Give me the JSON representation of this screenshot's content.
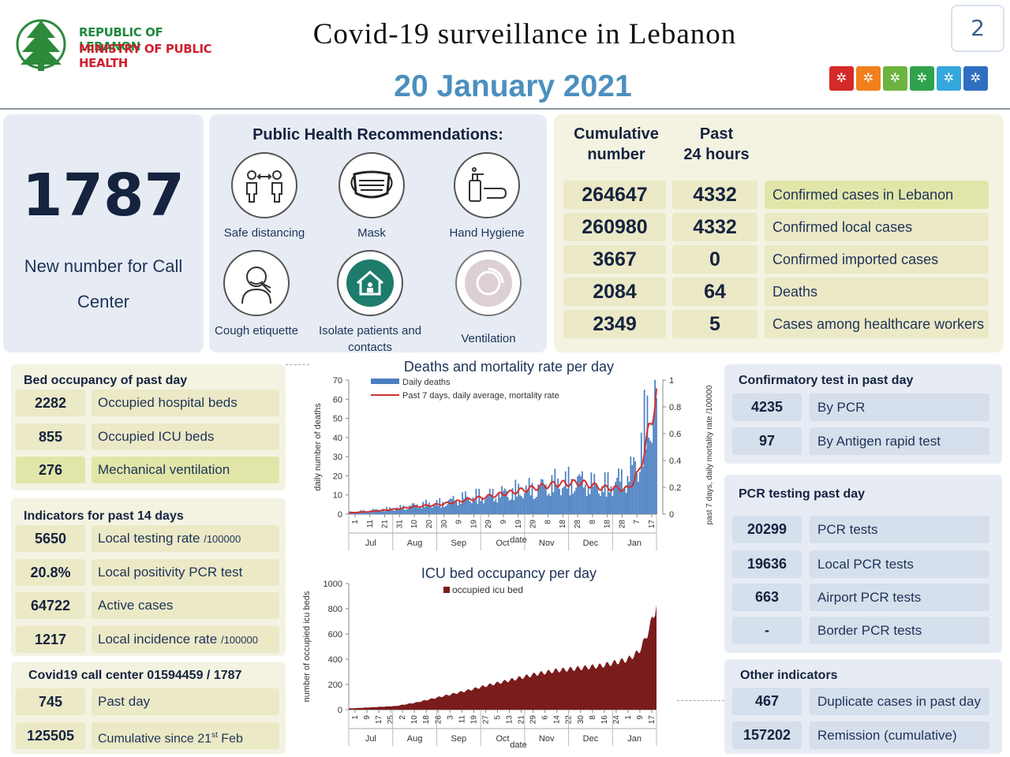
{
  "header": {
    "logo_line1": "REPUBLIC OF LEBANON",
    "logo_line2": "MINISTRY OF PUBLIC HEALTH",
    "title": "Covid-19 surveillance in Lebanon",
    "date": "20 January 2021",
    "page_number": "2",
    "icon_colors": [
      "#d62a2a",
      "#f07f1c",
      "#6db33f",
      "#2fa34b",
      "#35a7db",
      "#2f6fc0"
    ]
  },
  "call_center": {
    "number": "1787",
    "label_line1": "New number for Call",
    "label_line2": "Center"
  },
  "recommendations": {
    "title": "Public Health Recommendations:",
    "items": [
      {
        "label": "Safe distancing",
        "icon": "distancing-icon"
      },
      {
        "label": "Mask",
        "icon": "mask-icon"
      },
      {
        "label": "Hand Hygiene",
        "icon": "hand-hygiene-icon"
      },
      {
        "label": "Cough etiquette",
        "icon": "cough-icon"
      },
      {
        "label": "Isolate patients and contacts",
        "icon": "isolate-icon"
      },
      {
        "label": "Ventilation",
        "icon": "ventilation-icon"
      }
    ]
  },
  "cumulative": {
    "head_cumulative_l1": "Cumulative",
    "head_cumulative_l2": "number",
    "head_past_l1": "Past",
    "head_past_l2": "24 hours",
    "rows": [
      {
        "cumulative": "264647",
        "past24": "4332",
        "label": "Confirmed cases in Lebanon"
      },
      {
        "cumulative": "260980",
        "past24": "4332",
        "label": "Confirmed local cases"
      },
      {
        "cumulative": "3667",
        "past24": "0",
        "label": "Confirmed imported cases"
      },
      {
        "cumulative": "2084",
        "past24": "64",
        "label": "Deaths"
      },
      {
        "cumulative": "2349",
        "past24": "5",
        "label": "Cases among healthcare workers"
      }
    ]
  },
  "bed_occupancy": {
    "title": "Bed occupancy of past day",
    "rows": [
      {
        "value": "2282",
        "label": "Occupied hospital beds"
      },
      {
        "value": "855",
        "label": "Occupied ICU beds"
      },
      {
        "value": "276",
        "label": "Mechanical ventilation"
      }
    ]
  },
  "indicators14": {
    "title": "Indicators for past 14 days",
    "rows": [
      {
        "value": "5650",
        "label": "Local testing  rate",
        "unit": "/100000"
      },
      {
        "value": "20.8%",
        "label": "Local positivity PCR test",
        "unit": ""
      },
      {
        "value": "64722",
        "label": "Active cases",
        "unit": ""
      },
      {
        "value": "1217",
        "label": "Local  incidence rate",
        "unit": "/100000"
      }
    ]
  },
  "callcenter_stats": {
    "title": "Covid19 call center 01594459 / 1787",
    "rows": [
      {
        "value": "745",
        "label": "Past day"
      },
      {
        "value": "125505",
        "label": "Cumulative since 21",
        "sup": "st",
        "suffix": " Feb"
      }
    ]
  },
  "confirmatory": {
    "title": "Confirmatory test in past day",
    "rows": [
      {
        "value": "4235",
        "label": "By PCR"
      },
      {
        "value": "97",
        "label": "By Antigen rapid test"
      }
    ]
  },
  "pcr": {
    "title": "PCR testing past day",
    "rows": [
      {
        "value": "20299",
        "label": "PCR tests"
      },
      {
        "value": "19636",
        "label": "Local PCR tests"
      },
      {
        "value": "663",
        "label": "Airport PCR tests"
      },
      {
        "value": "-",
        "label": "Border PCR tests"
      }
    ]
  },
  "other": {
    "title": "Other indicators",
    "rows": [
      {
        "value": "467",
        "label": "Duplicate cases in past day"
      },
      {
        "value": "157202",
        "label": "Remission (cumulative)"
      }
    ]
  },
  "chart_data": [
    {
      "type": "bar",
      "title": "Deaths and mortality rate per day",
      "xlabel": "date",
      "ylabel": "daily number of deaths",
      "y2label": "past 7 days, daily mortality rate /100000",
      "ylim": [
        0,
        70
      ],
      "yticks": [
        0,
        10,
        20,
        30,
        40,
        50,
        60,
        70
      ],
      "y2lim": [
        0,
        1
      ],
      "y2ticks": [
        "0",
        "0.2",
        "0.4",
        "0.6",
        "0.8",
        "1"
      ],
      "months": [
        "Jul",
        "Aug",
        "Sep",
        "Oct",
        "Nov",
        "Dec",
        "Jan"
      ],
      "date_ticks": [
        "1",
        "11",
        "21",
        "31",
        "10",
        "20",
        "30",
        "9",
        "19",
        "29",
        "9",
        "19",
        "29",
        "8",
        "18",
        "28",
        "8",
        "18",
        "28",
        "7",
        "17"
      ],
      "x_start": "2020-07-01",
      "x_end": "2021-01-20",
      "series": [
        {
          "name": "Daily deaths",
          "color": "#4a7fc1",
          "x": [
            "2020-07-01",
            "2020-07-15",
            "2020-08-01",
            "2020-08-15",
            "2020-09-01",
            "2020-09-15",
            "2020-10-01",
            "2020-10-15",
            "2020-11-01",
            "2020-11-15",
            "2020-12-01",
            "2020-12-15",
            "2021-01-01",
            "2021-01-08",
            "2021-01-12",
            "2021-01-16",
            "2021-01-20"
          ],
          "values": [
            1,
            2,
            3,
            5,
            6,
            9,
            10,
            12,
            14,
            17,
            18,
            15,
            20,
            30,
            45,
            55,
            64
          ]
        },
        {
          "name": "Past 7 days, daily average, mortality rate",
          "color": "#d0322f",
          "axis": "right",
          "x": [
            "2020-07-01",
            "2020-07-15",
            "2020-08-01",
            "2020-08-15",
            "2020-09-01",
            "2020-09-15",
            "2020-10-01",
            "2020-10-15",
            "2020-11-01",
            "2020-11-15",
            "2020-12-01",
            "2020-12-15",
            "2021-01-01",
            "2021-01-08",
            "2021-01-12",
            "2021-01-16",
            "2021-01-20"
          ],
          "values": [
            0.01,
            0.02,
            0.04,
            0.06,
            0.08,
            0.11,
            0.14,
            0.17,
            0.21,
            0.24,
            0.25,
            0.21,
            0.2,
            0.32,
            0.5,
            0.72,
            0.95
          ]
        }
      ]
    },
    {
      "type": "area",
      "title": "ICU bed occupancy per day",
      "xlabel": "date",
      "ylabel": "number of occupied icu beds",
      "ylim": [
        0,
        1000
      ],
      "yticks": [
        0,
        200,
        400,
        600,
        800,
        1000
      ],
      "months": [
        "Jul",
        "Aug",
        "Sep",
        "Oct",
        "Nov",
        "Dec",
        "Jan"
      ],
      "date_ticks": [
        "1",
        "9",
        "17",
        "25",
        "2",
        "10",
        "18",
        "26",
        "3",
        "11",
        "19",
        "27",
        "5",
        "13",
        "21",
        "29",
        "6",
        "14",
        "22",
        "30",
        "8",
        "16",
        "24",
        "1",
        "9",
        "17"
      ],
      "x_start": "2020-07-01",
      "x_end": "2021-01-20",
      "series": [
        {
          "name": "occupied icu bed",
          "color": "#7b1c1c",
          "x": [
            "2020-07-01",
            "2020-08-01",
            "2020-08-15",
            "2020-09-01",
            "2020-09-15",
            "2020-10-01",
            "2020-10-15",
            "2020-11-01",
            "2020-11-15",
            "2020-12-01",
            "2020-12-15",
            "2021-01-01",
            "2021-01-08",
            "2021-01-12",
            "2021-01-16",
            "2021-01-20"
          ],
          "values": [
            10,
            30,
            60,
            110,
            150,
            200,
            240,
            290,
            320,
            340,
            360,
            410,
            470,
            560,
            690,
            855
          ]
        }
      ]
    }
  ]
}
